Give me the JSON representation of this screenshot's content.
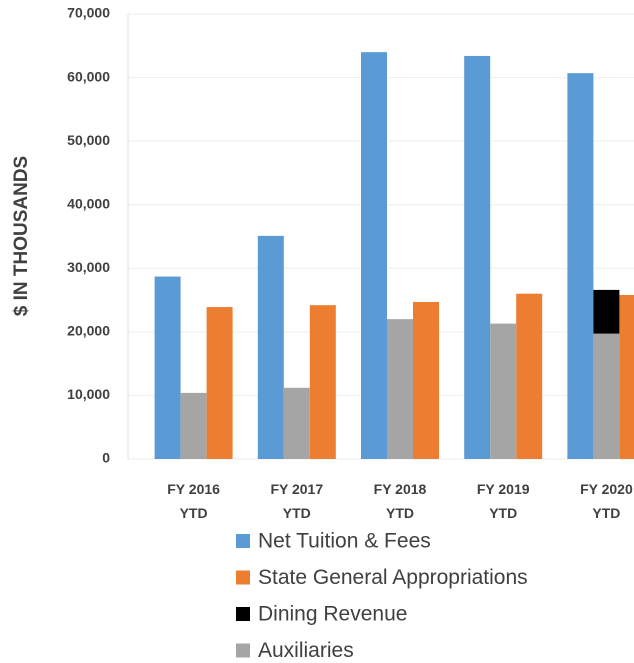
{
  "chart_data": {
    "type": "bar",
    "y_label": "$ IN THOUSANDS",
    "categories": [
      "FY 2016 YTD",
      "FY 2017 YTD",
      "FY 2018 YTD",
      "FY 2019 YTD",
      "FY 2020 YTD"
    ],
    "series": [
      {
        "name": "Net Tuition & Fees",
        "color": "#5b9bd5",
        "values": [
          28700,
          35100,
          64000,
          63400,
          60700
        ]
      },
      {
        "name": "State General Appropriations",
        "color": "#ed7d31",
        "values": [
          23900,
          24200,
          24700,
          26000,
          25800
        ]
      },
      {
        "name": "Dining Revenue",
        "color": "#000000",
        "values": [
          0,
          0,
          0,
          0,
          6900
        ]
      },
      {
        "name": "Auxiliaries",
        "color": "#a5a5a5",
        "values": [
          10400,
          11200,
          22000,
          21300,
          19700
        ]
      }
    ],
    "ylim": [
      0,
      70000
    ],
    "yticks": [
      0,
      {
        "value": 10000,
        "label": "10,000"
      },
      {
        "value": 20000,
        "label": "20,000"
      },
      {
        "value": 30000,
        "label": "30,000"
      },
      {
        "value": 40000,
        "label": "40,000"
      },
      {
        "value": 50000,
        "label": "50,000"
      },
      {
        "value": 60000,
        "label": "60,000"
      },
      {
        "value": 70000,
        "label": "70,000"
      }
    ],
    "grid": true
  }
}
